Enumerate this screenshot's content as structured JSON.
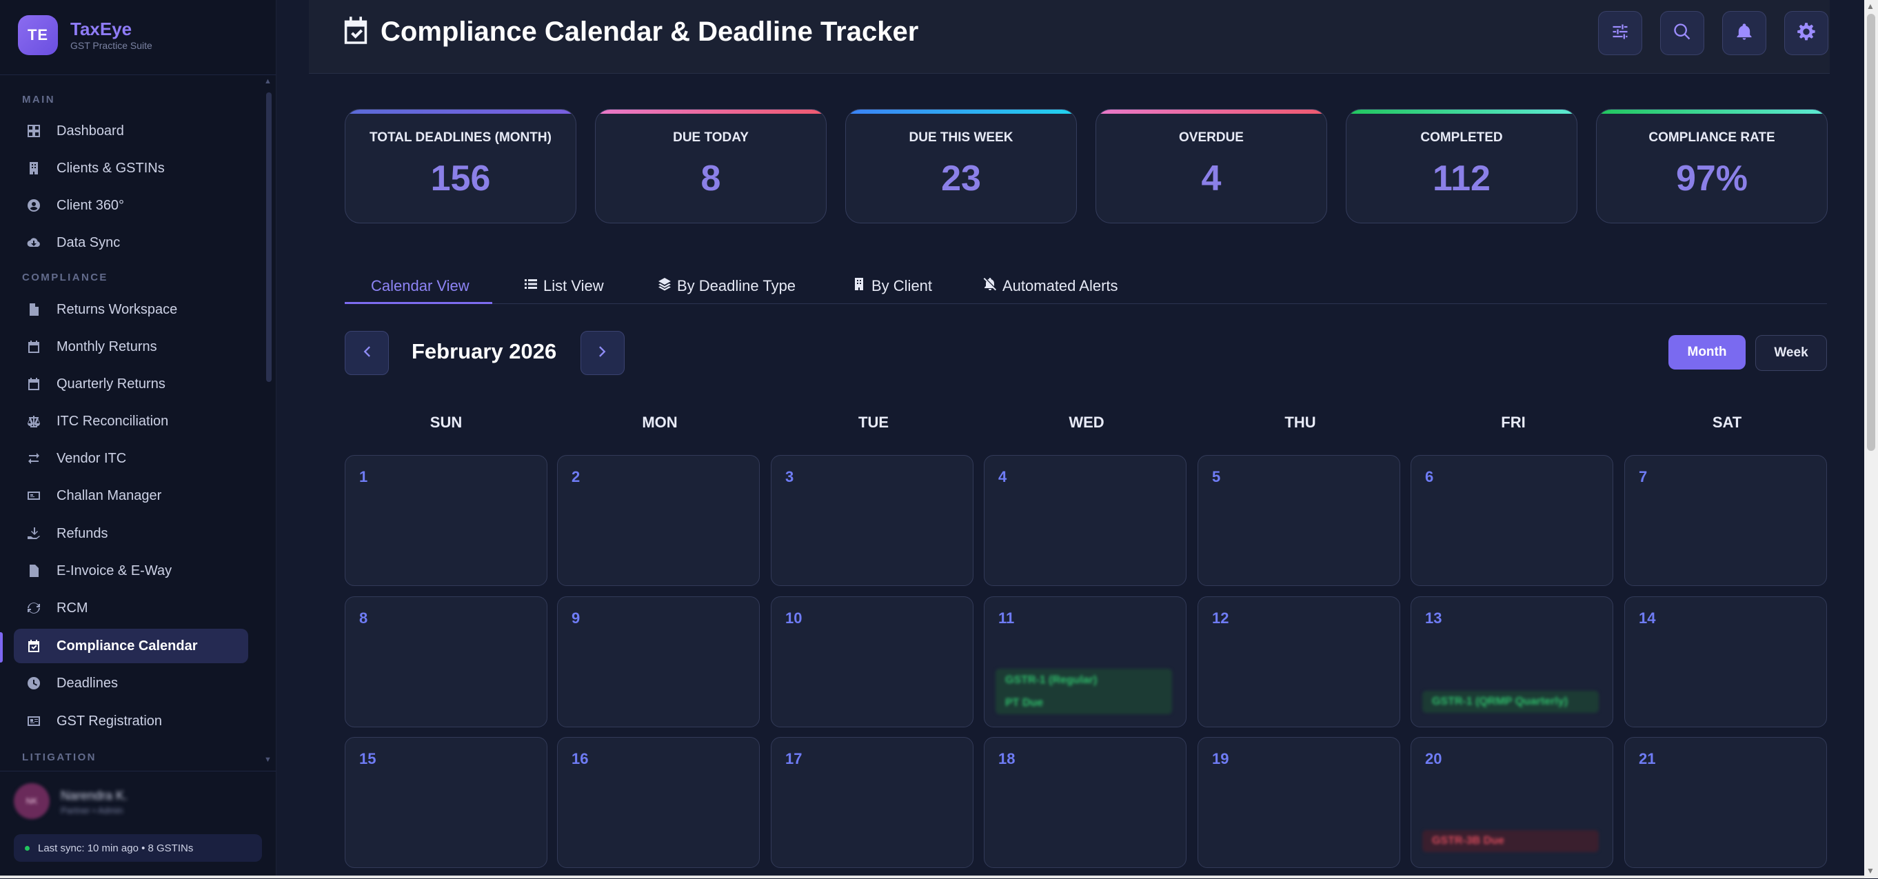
{
  "brand": {
    "initials": "TE",
    "name": "TaxEye",
    "subtitle": "GST Practice Suite"
  },
  "sidebar": {
    "sections": [
      {
        "label": "MAIN",
        "items": [
          {
            "label": "Dashboard",
            "icon": "dashboard-icon"
          },
          {
            "label": "Clients & GSTINs",
            "icon": "building-icon"
          },
          {
            "label": "Client 360°",
            "icon": "user-circle-icon"
          },
          {
            "label": "Data Sync",
            "icon": "cloud-download-icon"
          }
        ]
      },
      {
        "label": "COMPLIANCE",
        "items": [
          {
            "label": "Returns Workspace",
            "icon": "file-icon"
          },
          {
            "label": "Monthly Returns",
            "icon": "calendar-icon"
          },
          {
            "label": "Quarterly Returns",
            "icon": "calendar-icon"
          },
          {
            "label": "ITC Reconciliation",
            "icon": "scale-icon"
          },
          {
            "label": "Vendor ITC",
            "icon": "exchange-icon"
          },
          {
            "label": "Challan Manager",
            "icon": "money-icon"
          },
          {
            "label": "Refunds",
            "icon": "hand-coin-icon"
          },
          {
            "label": "E-Invoice & E-Way",
            "icon": "file-invoice-icon"
          },
          {
            "label": "RCM",
            "icon": "sync-icon"
          },
          {
            "label": "Compliance Calendar",
            "icon": "calendar-check-icon",
            "active": true
          },
          {
            "label": "Deadlines",
            "icon": "clock-icon"
          },
          {
            "label": "GST Registration",
            "icon": "id-card-icon"
          }
        ]
      },
      {
        "label": "LITIGATION",
        "items": []
      }
    ],
    "user": {
      "initials": "NK",
      "name": "Narendra K.",
      "role": "Partner • Admin"
    },
    "sync_status": "Last sync: 10 min ago • 8 GSTINs"
  },
  "header": {
    "title": "Compliance Calendar & Deadline Tracker",
    "title_icon": "calendar-check-icon",
    "buttons": [
      "sliders-icon",
      "search-icon",
      "bell-icon",
      "gear-icon"
    ]
  },
  "kpis": [
    {
      "label": "TOTAL DEADLINES (MONTH)",
      "value": "156",
      "accent": "#6c6fdc"
    },
    {
      "label": "DUE TODAY",
      "value": "8",
      "accent": "#e05c8a"
    },
    {
      "label": "DUE THIS WEEK",
      "value": "23",
      "accent": "#22d3ee"
    },
    {
      "label": "OVERDUE",
      "value": "4",
      "accent": "#ef6b8f"
    },
    {
      "label": "COMPLETED",
      "value": "112",
      "accent": "#34d399"
    },
    {
      "label": "COMPLIANCE RATE",
      "value": "97%",
      "accent": "#34d399"
    }
  ],
  "tabs": [
    {
      "label": "Calendar View",
      "icon": "",
      "active": true
    },
    {
      "label": "List View",
      "icon": "list-icon"
    },
    {
      "label": "By Deadline Type",
      "icon": "layers-icon"
    },
    {
      "label": "By Client",
      "icon": "building-icon"
    },
    {
      "label": "Automated Alerts",
      "icon": "bell-slash-icon"
    }
  ],
  "calendar": {
    "month_label": "February 2026",
    "view_buttons": {
      "month": "Month",
      "week": "Week",
      "selected": "Month"
    },
    "weekdays": [
      "SUN",
      "MON",
      "TUE",
      "WED",
      "THU",
      "FRI",
      "SAT"
    ],
    "days": [
      "1",
      "2",
      "3",
      "4",
      "5",
      "6",
      "7",
      "8",
      "9",
      "10",
      "11",
      "12",
      "13",
      "14",
      "15",
      "16",
      "17",
      "18",
      "19",
      "20",
      "21"
    ],
    "events": {
      "11": [
        "GSTR-1 (Regular)",
        "PT Due"
      ],
      "13": [
        "GSTR-1 (QRMP Quarterly)"
      ],
      "20": [
        "GSTR-3B Due"
      ]
    }
  }
}
